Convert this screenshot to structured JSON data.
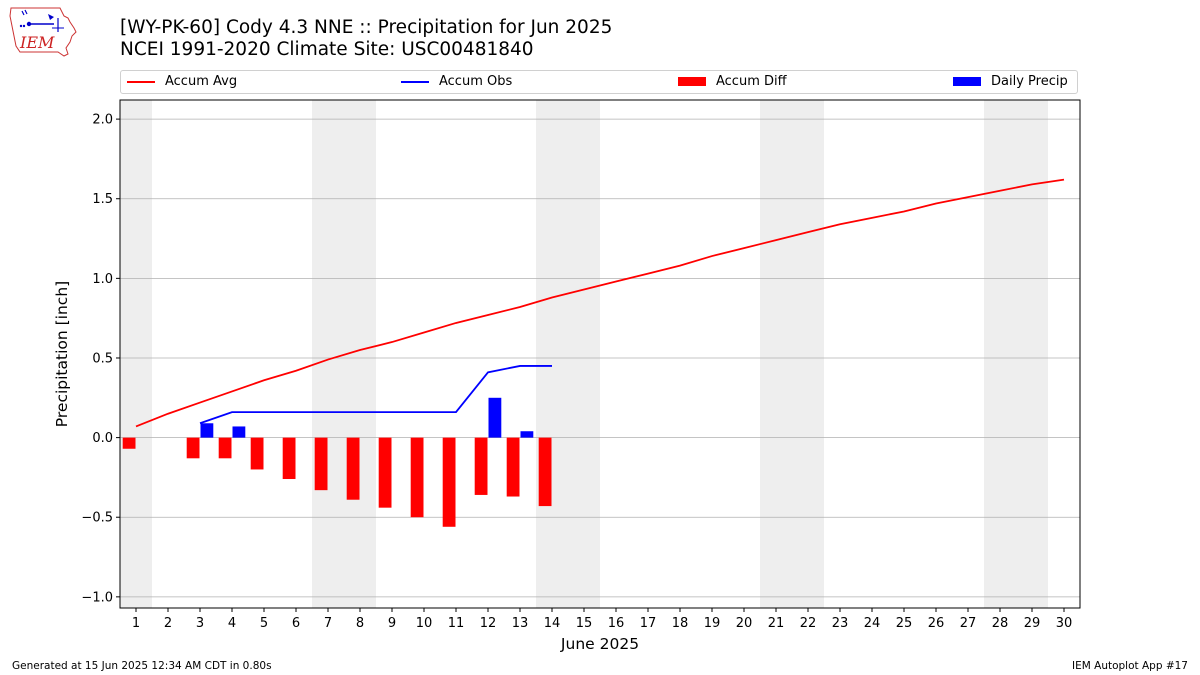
{
  "header": {
    "title_line1": "[WY-PK-60] Cody 4.3 NNE :: Precipitation for Jun 2025",
    "title_line2": "NCEI 1991-2020 Climate Site: USC00481840"
  },
  "logo": {
    "text": "IEM"
  },
  "footer": {
    "generated": "Generated at 15 Jun 2025 12:34 AM CDT in 0.80s",
    "app": "IEM Autoplot App #17"
  },
  "colors": {
    "avg": "#ff0000",
    "obs": "#0000ff",
    "diff": "#ff0000",
    "daily": "#0000ff",
    "weekend": "#eeeeee",
    "grid": "#b0b0b0"
  },
  "legend": [
    {
      "label": "Accum Avg",
      "kind": "line",
      "color": "#ff0000"
    },
    {
      "label": "Accum Obs",
      "kind": "line",
      "color": "#0000ff"
    },
    {
      "label": "Accum Diff",
      "kind": "box",
      "color": "#ff0000"
    },
    {
      "label": "Daily Precip",
      "kind": "box",
      "color": "#0000ff"
    }
  ],
  "chart_data": {
    "type": "bar",
    "xlabel": "June 2025",
    "ylabel": "Precipitation [inch]",
    "xlim": [
      0.5,
      30.5
    ],
    "ylim": [
      -1.07,
      2.12
    ],
    "x_ticks": [
      1,
      2,
      3,
      4,
      5,
      6,
      7,
      8,
      9,
      10,
      11,
      12,
      13,
      14,
      15,
      16,
      17,
      18,
      19,
      20,
      21,
      22,
      23,
      24,
      25,
      26,
      27,
      28,
      29,
      30
    ],
    "y_ticks": [
      {
        "value": 2.0,
        "label": "2.0"
      },
      {
        "value": 1.5,
        "label": "1.5"
      },
      {
        "value": 1.0,
        "label": "1.0"
      },
      {
        "value": 0.5,
        "label": "0.5"
      },
      {
        "value": 0.0,
        "label": "0.0"
      },
      {
        "value": -0.5,
        "label": "−0.5"
      },
      {
        "value": -1.0,
        "label": "−1.0"
      }
    ],
    "grid": "horizontal",
    "weekend_bands": [
      [
        0.5,
        1.5
      ],
      [
        6.5,
        8.5
      ],
      [
        13.5,
        15.5
      ],
      [
        20.5,
        22.5
      ],
      [
        27.5,
        29.5
      ]
    ],
    "series": [
      {
        "name": "Accum Avg",
        "kind": "line",
        "x": [
          1,
          2,
          3,
          4,
          5,
          6,
          7,
          8,
          9,
          10,
          11,
          12,
          13,
          14,
          15,
          16,
          17,
          18,
          19,
          20,
          21,
          22,
          23,
          24,
          25,
          26,
          27,
          28,
          29,
          30
        ],
        "values": [
          0.07,
          0.15,
          0.22,
          0.29,
          0.36,
          0.42,
          0.49,
          0.55,
          0.6,
          0.66,
          0.72,
          0.77,
          0.82,
          0.88,
          0.93,
          0.98,
          1.03,
          1.08,
          1.14,
          1.19,
          1.24,
          1.29,
          1.34,
          1.38,
          1.42,
          1.47,
          1.51,
          1.55,
          1.59,
          1.62
        ]
      },
      {
        "name": "Accum Obs",
        "kind": "line",
        "x": [
          3,
          4,
          5,
          6,
          7,
          8,
          9,
          10,
          11,
          12,
          13,
          14
        ],
        "values": [
          0.09,
          0.16,
          0.16,
          0.16,
          0.16,
          0.16,
          0.16,
          0.16,
          0.16,
          0.41,
          0.45,
          0.45
        ]
      },
      {
        "name": "Accum Diff",
        "kind": "bar",
        "x": [
          1,
          3,
          4,
          5,
          6,
          7,
          8,
          9,
          10,
          11,
          12,
          13,
          14
        ],
        "values": [
          -0.07,
          -0.13,
          -0.13,
          -0.2,
          -0.26,
          -0.33,
          -0.39,
          -0.44,
          -0.5,
          -0.56,
          -0.36,
          -0.37,
          -0.43
        ]
      },
      {
        "name": "Daily Precip",
        "kind": "bar",
        "x": [
          3,
          4,
          12,
          13
        ],
        "values": [
          0.09,
          0.07,
          0.25,
          0.04
        ]
      }
    ]
  }
}
